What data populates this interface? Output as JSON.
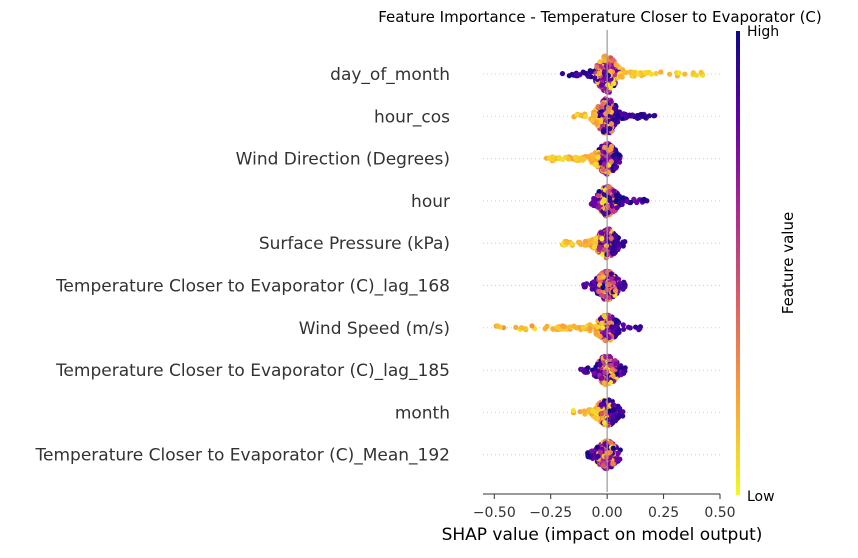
{
  "chart_data": {
    "type": "scatter",
    "subtype": "shap_beeswarm",
    "title": "Feature Importance - Temperature Closer to Evaporator (C)",
    "xlabel": "SHAP value (impact on model output)",
    "xlim": [
      -0.55,
      0.5
    ],
    "xticks": [
      -0.5,
      -0.25,
      0.0,
      0.25,
      0.5
    ],
    "xtick_labels": [
      "−0.50",
      "−0.25",
      "0.00",
      "0.25",
      "0.50"
    ],
    "features": [
      {
        "name": "day_of_month",
        "min": -0.22,
        "max": 0.45,
        "low_side": "positive",
        "spread": 0.55
      },
      {
        "name": "hour_cos",
        "min": -0.15,
        "max": 0.23,
        "low_side": "negative",
        "spread": 0.5
      },
      {
        "name": "Wind Direction (Degrees)",
        "min": -0.27,
        "max": 0.08,
        "low_side": "negative",
        "spread": 0.35
      },
      {
        "name": "hour",
        "min": -0.07,
        "max": 0.19,
        "low_side": "mixed",
        "spread": 0.3
      },
      {
        "name": "Surface Pressure (kPa)",
        "min": -0.2,
        "max": 0.08,
        "low_side": "negative",
        "spread": 0.3
      },
      {
        "name": "Temperature Closer to Evaporator (C)_lag_168",
        "min": -0.12,
        "max": 0.08,
        "low_side": "mixed",
        "spread": 0.3
      },
      {
        "name": "Wind Speed (m/s)",
        "min": -0.5,
        "max": 0.16,
        "low_side": "negative",
        "spread": 0.2
      },
      {
        "name": "Temperature Closer to Evaporator (C)_lag_185",
        "min": -0.12,
        "max": 0.08,
        "low_side": "mixed",
        "spread": 0.3
      },
      {
        "name": "month",
        "min": -0.15,
        "max": 0.07,
        "low_side": "negative",
        "spread": 0.22
      },
      {
        "name": "Temperature Closer to Evaporator (C)_Mean_192",
        "min": -0.09,
        "max": 0.06,
        "low_side": "mixed",
        "spread": 0.25
      }
    ],
    "colorbar": {
      "label": "Feature value",
      "high_label": "High",
      "low_label": "Low",
      "colormap": "plasma",
      "colors": [
        "#0d0887",
        "#6a00a8",
        "#b12a90",
        "#e16462",
        "#fca636",
        "#f0f921"
      ]
    },
    "zero_line": true
  }
}
